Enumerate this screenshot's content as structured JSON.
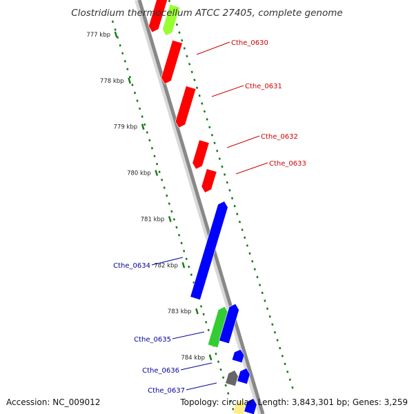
{
  "title": "Clostridium thermocellum ATCC 27405, complete genome",
  "footer": {
    "accession": "Accession: NC_009012",
    "topology": "Topology: circular; Length: 3,843,301 bp; Genes: 3,259"
  },
  "colors": {
    "forward_gene": "#ff0000",
    "reverse_gene": "#0000ff",
    "forward_label": "#cc0000",
    "reverse_label": "#000099",
    "tick": "#1a7a1a",
    "backbone": "#888888",
    "gene_green": "#33cc33",
    "gene_lightgreen": "#99ff33",
    "gene_gray": "#666666",
    "gene_yellow": "#ffee88"
  },
  "scale_ticks": [
    {
      "label": "777 kbp",
      "pos": 777
    },
    {
      "label": "778 kbp",
      "pos": 778
    },
    {
      "label": "779 kbp",
      "pos": 779
    },
    {
      "label": "780 kbp",
      "pos": 780
    },
    {
      "label": "781 kbp",
      "pos": 781
    },
    {
      "label": "782 kbp",
      "pos": 782
    },
    {
      "label": "783 kbp",
      "pos": 783
    },
    {
      "label": "784 kbp",
      "pos": 784
    }
  ],
  "gene_labels": [
    {
      "name": "Cthe_0630",
      "strand": "forward"
    },
    {
      "name": "Cthe_0631",
      "strand": "forward"
    },
    {
      "name": "Cthe_0632",
      "strand": "forward"
    },
    {
      "name": "Cthe_0633",
      "strand": "forward"
    },
    {
      "name": "Cthe_0634",
      "strand": "reverse"
    },
    {
      "name": "Cthe_0635",
      "strand": "reverse"
    },
    {
      "name": "Cthe_0636",
      "strand": "reverse"
    },
    {
      "name": "Cthe_0637",
      "strand": "reverse"
    }
  ]
}
